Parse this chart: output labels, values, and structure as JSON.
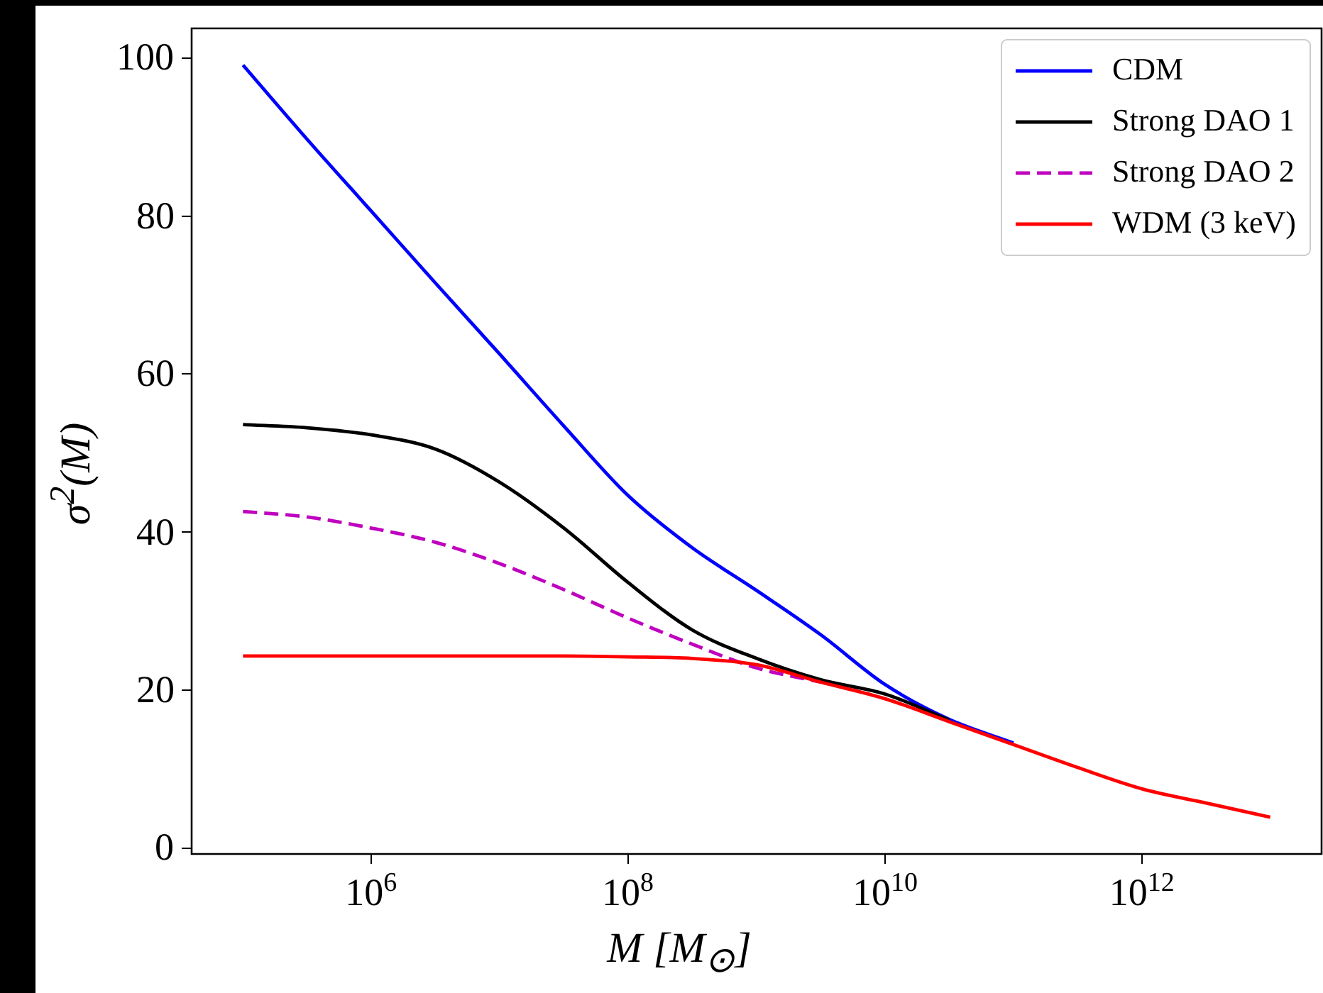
{
  "chart_data": {
    "type": "line",
    "xlabel": "M [M$_{⊙}$]",
    "ylabel": "σ$^{2}$(M)",
    "log": "x",
    "x": [
      100000.0,
      316000.0,
      1000000.0,
      3160000.0,
      10000000.0,
      31600000.0,
      100000000.0,
      316000000.0,
      1000000000.0,
      3160000000.0,
      10000000000.0,
      31600000000.0,
      100000000000.0,
      316000000000.0,
      1000000000000.0,
      3160000000000.0,
      10000000000000.0
    ],
    "series": [
      {
        "name": "CDM",
        "color": "#0000ff",
        "values": [
          99.1,
          89.7,
          80.6,
          71.5,
          62.5,
          53.4,
          44.6,
          38.0,
          32.6,
          27.0,
          20.7,
          16.3,
          13.3,
          null,
          null,
          null,
          null
        ]
      },
      {
        "name": "Strong DAO 1",
        "color": "#000000",
        "values": [
          53.6,
          53.2,
          52.3,
          50.5,
          46.3,
          40.5,
          33.6,
          27.6,
          24.0,
          21.3,
          19.5,
          16.2,
          null,
          null,
          null,
          null,
          null
        ]
      },
      {
        "name": "Strong DAO 2",
        "color": "#bf00bf",
        "line_style": "dashed",
        "values": [
          42.6,
          41.9,
          40.5,
          38.7,
          36.0,
          32.7,
          29.1,
          25.8,
          22.8,
          21.0,
          null,
          null,
          null,
          null,
          null,
          null,
          null
        ]
      },
      {
        "name": "WDM (3 keV)",
        "color": "#ff0000",
        "values": [
          24.3,
          24.3,
          24.3,
          24.3,
          24.3,
          24.3,
          24.2,
          24.0,
          23.2,
          21.0,
          18.9,
          16.0,
          13.1,
          10.2,
          7.5,
          5.7,
          3.9
        ]
      }
    ],
    "xlim": [
      39810.7,
      25120000000000.0
    ],
    "xticks": [
      {
        "value": 1000000.0,
        "label": "10$^{6}$"
      },
      {
        "value": 100000000.0,
        "label": "10$^{8}$"
      },
      {
        "value": 10000000000.0,
        "label": "10$^{10}$"
      },
      {
        "value": 1000000000000.0,
        "label": "10$^{12}$"
      }
    ],
    "ylim": [
      -0.75,
      103.75
    ],
    "yticks": [
      0,
      20,
      40,
      60,
      80,
      100
    ],
    "grid": false,
    "legend": "top right",
    "marker": "none",
    "line_style": "solid"
  }
}
